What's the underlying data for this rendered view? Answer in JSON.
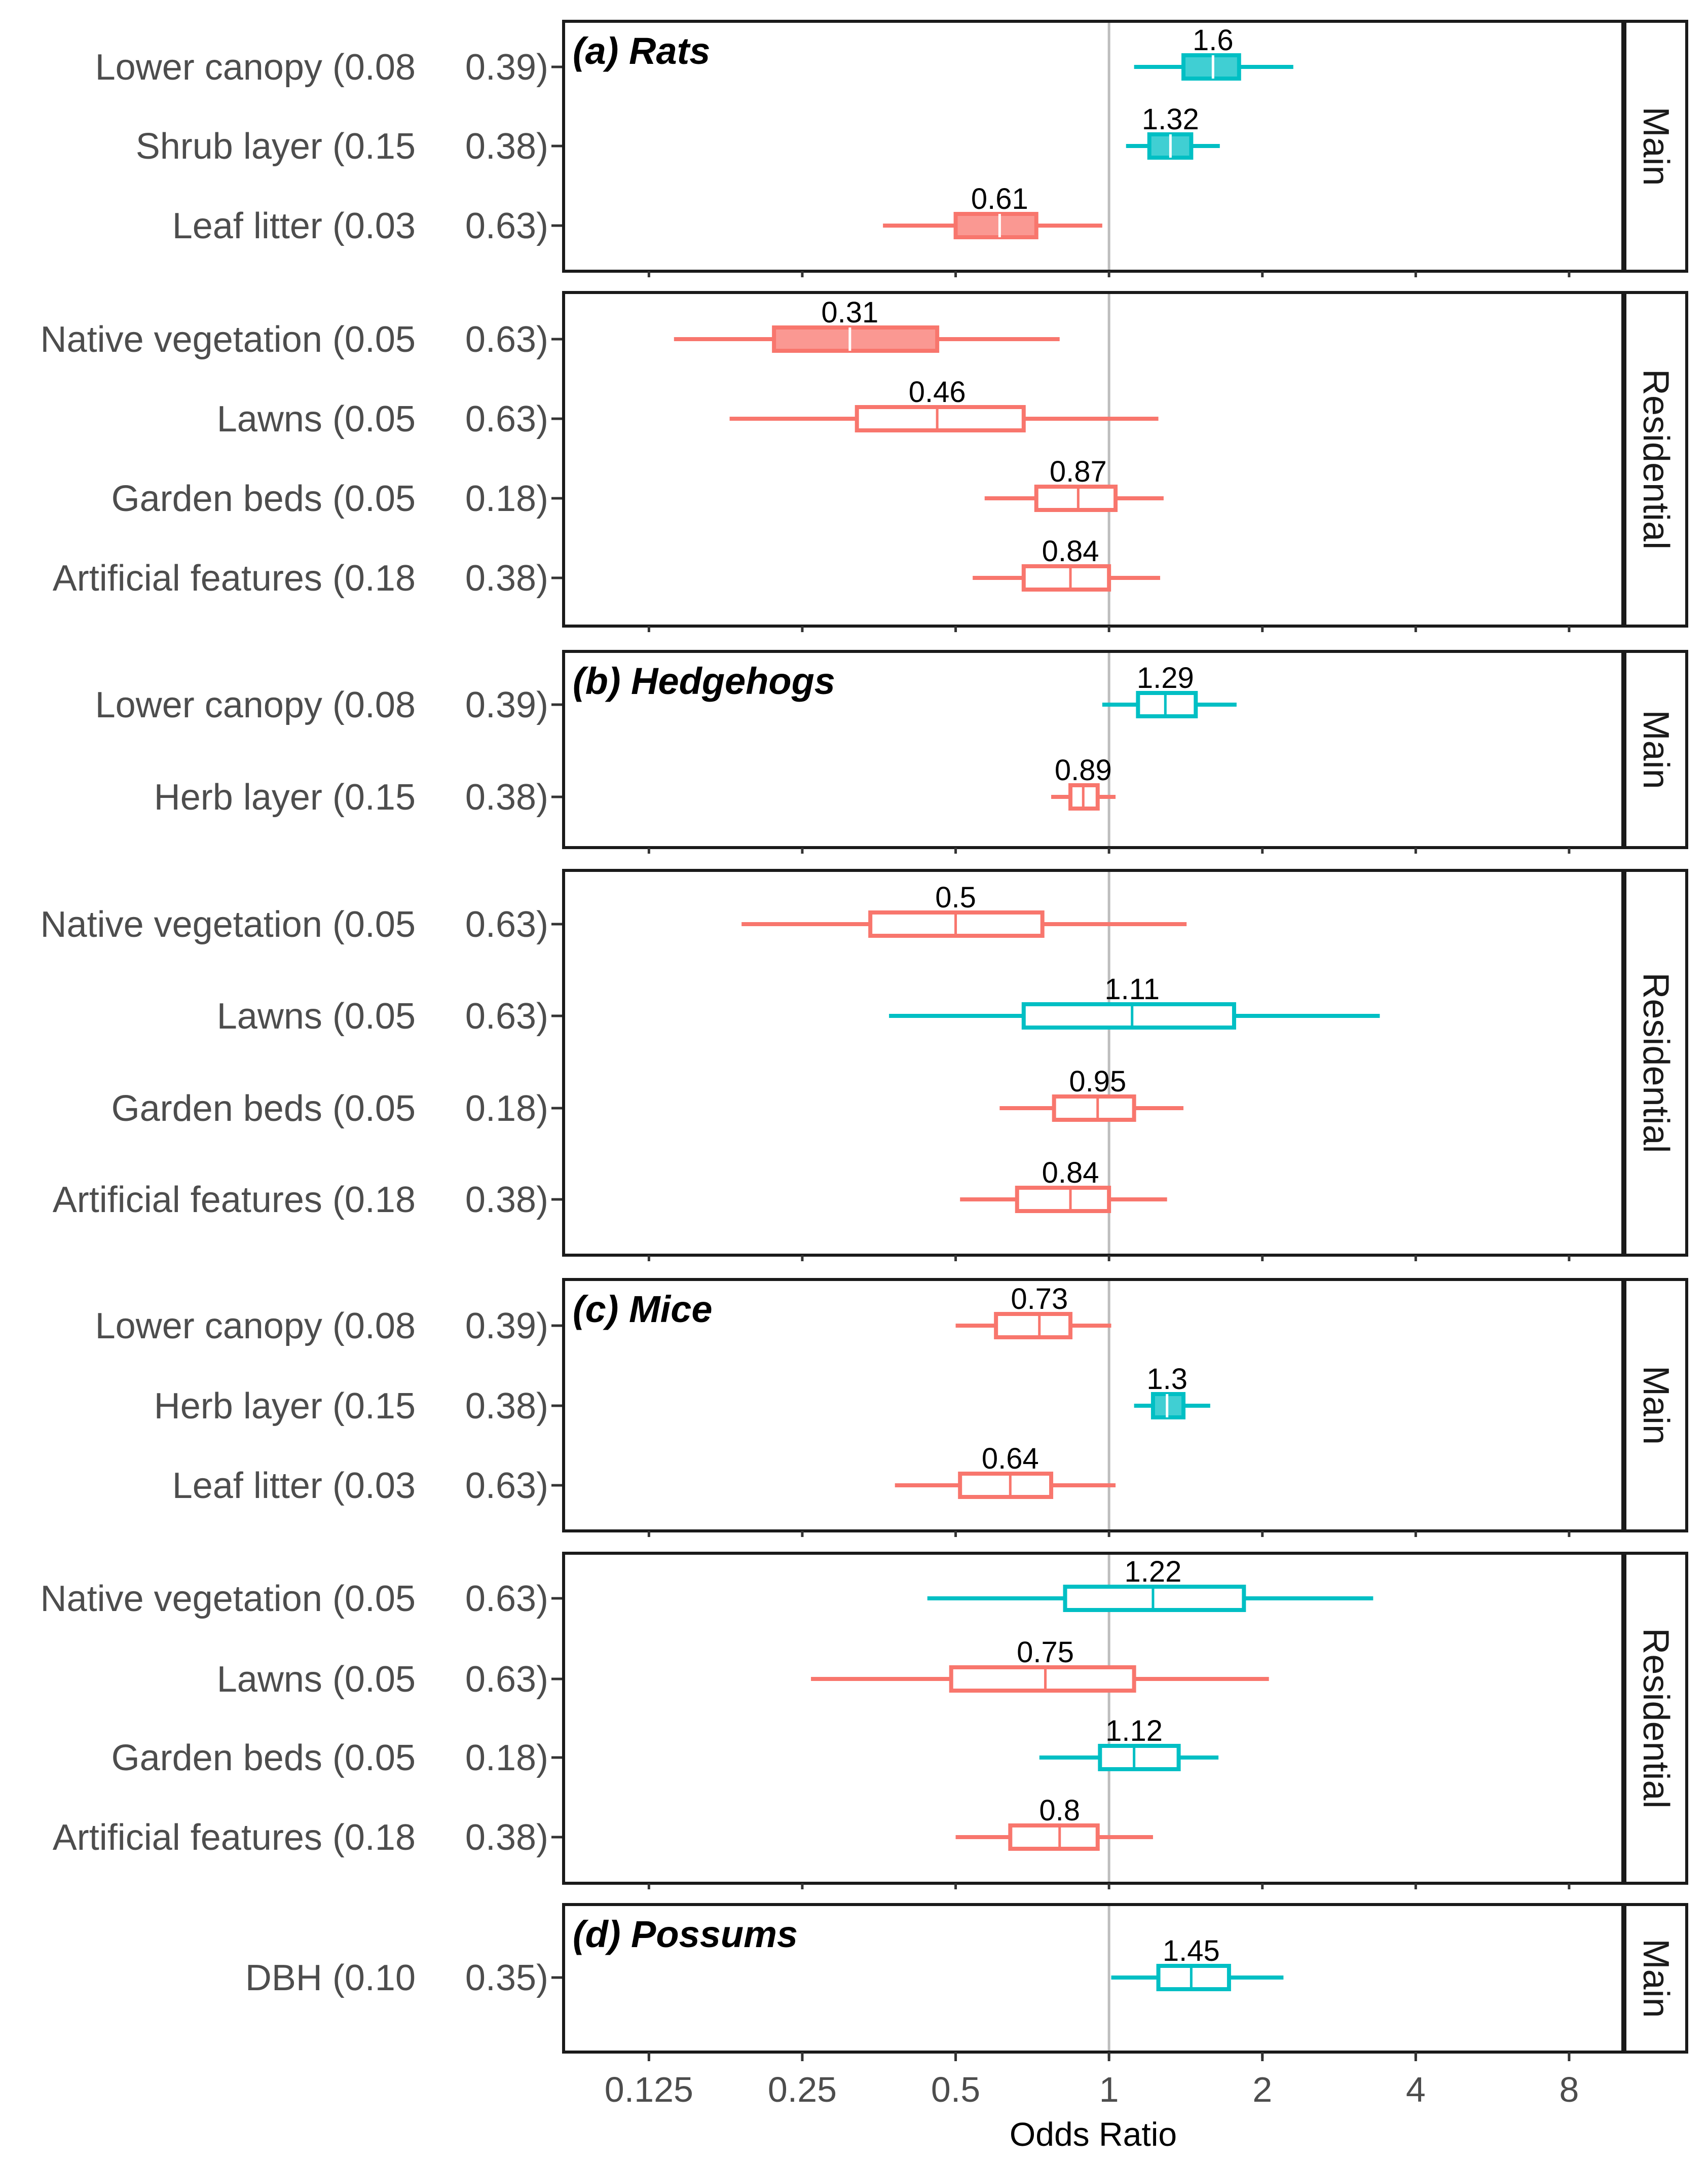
{
  "chart_data": {
    "type": "boxplot",
    "x_scale": "log2",
    "xlabel": "Odds Ratio",
    "xlim": [
      0.085,
      10.2
    ],
    "xticks": [
      0.125,
      0.25,
      0.5,
      1,
      2,
      4,
      8
    ],
    "xtick_labels": [
      "0.125",
      "0.25",
      "0.5",
      "1",
      "2",
      "4",
      "8"
    ],
    "reference_line": 1,
    "colors": {
      "positive": "#00BFC4",
      "negative": "#F8766D"
    },
    "panels": [
      {
        "title": "(a) Rats",
        "strip": "Main",
        "rows": [
          {
            "label": "Lower canopy (0.08",
            "label_end": "0.39)",
            "median": 1.6,
            "value_label": "1.6",
            "q1": 1.4,
            "q3": 1.8,
            "wmin": 1.12,
            "wmax": 2.3,
            "filled": true,
            "color": "positive"
          },
          {
            "label": "Shrub layer (0.15",
            "label_end": "0.38)",
            "median": 1.32,
            "value_label": "1.32",
            "q1": 1.2,
            "q3": 1.45,
            "wmin": 1.08,
            "wmax": 1.65,
            "filled": true,
            "color": "positive"
          },
          {
            "label": "Leaf litter (0.03",
            "label_end": "0.63)",
            "median": 0.61,
            "value_label": "0.61",
            "q1": 0.5,
            "q3": 0.72,
            "wmin": 0.36,
            "wmax": 0.97,
            "filled": true,
            "color": "negative"
          }
        ]
      },
      {
        "title": "",
        "strip": "Residential",
        "rows": [
          {
            "label": "Native vegetation (0.05",
            "label_end": "0.63)",
            "median": 0.31,
            "value_label": "0.31",
            "q1": 0.22,
            "q3": 0.46,
            "wmin": 0.14,
            "wmax": 0.8,
            "filled": true,
            "color": "negative"
          },
          {
            "label": "Lawns (0.05",
            "label_end": "0.63)",
            "median": 0.46,
            "value_label": "0.46",
            "q1": 0.32,
            "q3": 0.68,
            "wmin": 0.18,
            "wmax": 1.25,
            "filled": false,
            "color": "negative"
          },
          {
            "label": "Garden beds (0.05",
            "label_end": "0.18)",
            "median": 0.87,
            "value_label": "0.87",
            "q1": 0.72,
            "q3": 1.03,
            "wmin": 0.57,
            "wmax": 1.28,
            "filled": false,
            "color": "negative"
          },
          {
            "label": "Artificial features (0.18",
            "label_end": "0.38)",
            "median": 0.84,
            "value_label": "0.84",
            "q1": 0.68,
            "q3": 1.0,
            "wmin": 0.54,
            "wmax": 1.26,
            "filled": false,
            "color": "negative"
          }
        ]
      },
      {
        "title": "(b) Hedgehogs",
        "strip": "Main",
        "rows": [
          {
            "label": "Lower canopy (0.08",
            "label_end": "0.39)",
            "median": 1.29,
            "value_label": "1.29",
            "q1": 1.14,
            "q3": 1.48,
            "wmin": 0.97,
            "wmax": 1.78,
            "filled": false,
            "color": "positive"
          },
          {
            "label": "Herb layer (0.15",
            "label_end": "0.38)",
            "median": 0.89,
            "value_label": "0.89",
            "q1": 0.84,
            "q3": 0.95,
            "wmin": 0.77,
            "wmax": 1.03,
            "filled": false,
            "color": "negative"
          }
        ]
      },
      {
        "title": "",
        "strip": "Residential",
        "rows": [
          {
            "label": "Native vegetation (0.05",
            "label_end": "0.63)",
            "median": 0.5,
            "value_label": "0.5",
            "q1": 0.34,
            "q3": 0.74,
            "wmin": 0.19,
            "wmax": 1.42,
            "filled": false,
            "color": "negative"
          },
          {
            "label": "Lawns (0.05",
            "label_end": "0.63)",
            "median": 1.11,
            "value_label": "1.11",
            "q1": 0.68,
            "q3": 1.76,
            "wmin": 0.37,
            "wmax": 3.4,
            "filled": false,
            "color": "positive"
          },
          {
            "label": "Garden beds (0.05",
            "label_end": "0.18)",
            "median": 0.95,
            "value_label": "0.95",
            "q1": 0.78,
            "q3": 1.12,
            "wmin": 0.61,
            "wmax": 1.4,
            "filled": false,
            "color": "negative"
          },
          {
            "label": "Artificial features (0.18",
            "label_end": "0.38)",
            "median": 0.84,
            "value_label": "0.84",
            "q1": 0.66,
            "q3": 1.0,
            "wmin": 0.51,
            "wmax": 1.3,
            "filled": false,
            "color": "negative"
          }
        ]
      },
      {
        "title": "(c) Mice",
        "strip": "Main",
        "rows": [
          {
            "label": "Lower canopy (0.08",
            "label_end": "0.39)",
            "median": 0.73,
            "value_label": "0.73",
            "q1": 0.6,
            "q3": 0.84,
            "wmin": 0.5,
            "wmax": 1.01,
            "filled": false,
            "color": "negative"
          },
          {
            "label": "Herb layer (0.15",
            "label_end": "0.38)",
            "median": 1.3,
            "value_label": "1.3",
            "q1": 1.22,
            "q3": 1.4,
            "wmin": 1.12,
            "wmax": 1.58,
            "filled": true,
            "color": "positive"
          },
          {
            "label": "Leaf litter (0.03",
            "label_end": "0.63)",
            "median": 0.64,
            "value_label": "0.64",
            "q1": 0.51,
            "q3": 0.77,
            "wmin": 0.38,
            "wmax": 1.03,
            "filled": false,
            "color": "negative"
          }
        ]
      },
      {
        "title": "",
        "strip": "Residential",
        "rows": [
          {
            "label": "Native vegetation (0.05",
            "label_end": "0.63)",
            "median": 1.22,
            "value_label": "1.22",
            "q1": 0.82,
            "q3": 1.84,
            "wmin": 0.44,
            "wmax": 3.3,
            "filled": false,
            "color": "positive"
          },
          {
            "label": "Lawns (0.05",
            "label_end": "0.63)",
            "median": 0.75,
            "value_label": "0.75",
            "q1": 0.49,
            "q3": 1.12,
            "wmin": 0.26,
            "wmax": 2.06,
            "filled": false,
            "color": "negative"
          },
          {
            "label": "Garden beds (0.05",
            "label_end": "0.18)",
            "median": 1.12,
            "value_label": "1.12",
            "q1": 0.96,
            "q3": 1.37,
            "wmin": 0.73,
            "wmax": 1.64,
            "filled": false,
            "color": "positive"
          },
          {
            "label": "Artificial features (0.18",
            "label_end": "0.38)",
            "median": 0.8,
            "value_label": "0.8",
            "q1": 0.64,
            "q3": 0.95,
            "wmin": 0.5,
            "wmax": 1.22,
            "filled": false,
            "color": "negative"
          }
        ]
      },
      {
        "title": "(d) Possums",
        "strip": "Main",
        "rows": [
          {
            "label": "DBH (0.10",
            "label_end": "0.35)",
            "median": 1.45,
            "value_label": "1.45",
            "q1": 1.25,
            "q3": 1.72,
            "wmin": 1.01,
            "wmax": 2.2,
            "filled": false,
            "color": "positive"
          }
        ]
      }
    ]
  }
}
